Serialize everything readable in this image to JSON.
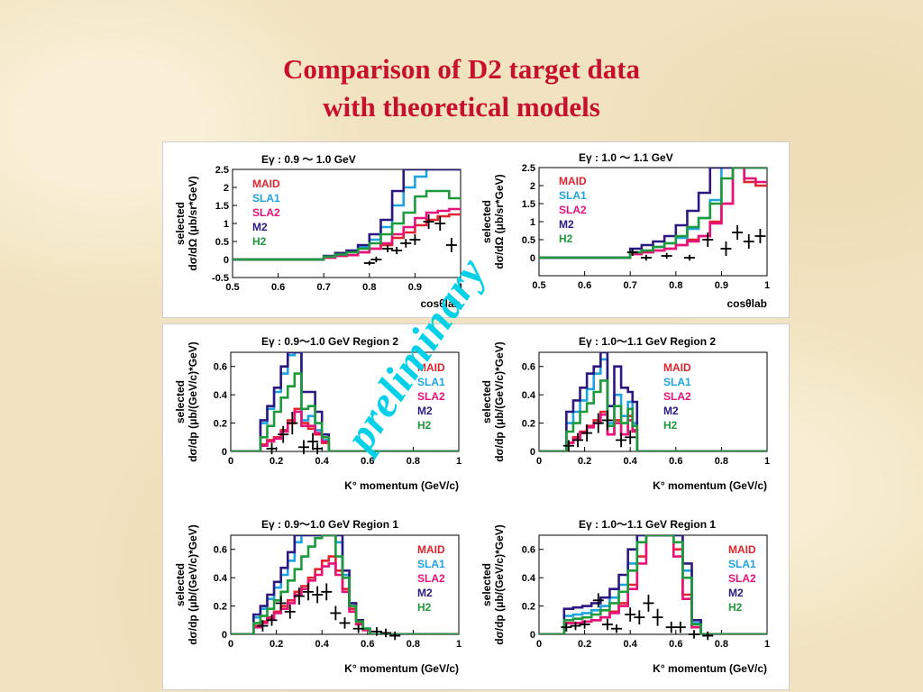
{
  "title_line1": "Comparison of  D2 target data",
  "title_line2": "with theoretical models",
  "watermark": "preliminary",
  "colors": {
    "MAID": "#e0252f",
    "SLA1": "#1ea3e0",
    "SLA2": "#e6127a",
    "M2": "#2c1880",
    "H2": "#1c9a3c",
    "data": "#000000"
  },
  "chart_data": [
    {
      "type": "line",
      "title": "Eγ : 0.9 ～ 1.0 GeV",
      "ylabel_line1": "selected",
      "ylabel_line2": "dσ/dΩ (μb/sr*GeV)",
      "xlabel": "cosθlab",
      "xlim": [
        0.5,
        1.0
      ],
      "ylim": [
        -0.5,
        2.5
      ],
      "xticks": [
        "0.5",
        "0.6",
        "0.7",
        "0.8",
        "0.9",
        "1"
      ],
      "yticks": [
        "-0.5",
        "0",
        "0.5",
        "1",
        "1.5",
        "2",
        "2.5"
      ],
      "legend": [
        "MAID",
        "SLA1",
        "SLA2",
        "M2",
        "H2"
      ],
      "edges": [
        0.5,
        0.7,
        0.725,
        0.75,
        0.775,
        0.8,
        0.825,
        0.85,
        0.875,
        0.9,
        0.925,
        0.95,
        0.975,
        1.0
      ],
      "series": [
        {
          "name": "MAID",
          "values": [
            0,
            0.05,
            0.1,
            0.12,
            0.2,
            0.3,
            0.4,
            0.6,
            0.75,
            0.95,
            1.1,
            1.2,
            1.25
          ]
        },
        {
          "name": "SLA1",
          "values": [
            0,
            0.08,
            0.15,
            0.22,
            0.35,
            0.55,
            0.9,
            1.5,
            2.0,
            2.3,
            2.5,
            2.5,
            2.5
          ]
        },
        {
          "name": "SLA2",
          "values": [
            0,
            0.05,
            0.1,
            0.12,
            0.2,
            0.3,
            0.45,
            0.7,
            0.9,
            1.15,
            1.3,
            1.35,
            1.4
          ]
        },
        {
          "name": "M2",
          "values": [
            0,
            0.1,
            0.18,
            0.25,
            0.4,
            0.7,
            1.1,
            1.9,
            2.5,
            2.5,
            2.5,
            2.5,
            2.5
          ]
        },
        {
          "name": "H2",
          "values": [
            0,
            0.08,
            0.14,
            0.2,
            0.3,
            0.45,
            0.7,
            1.0,
            1.3,
            1.75,
            1.9,
            1.9,
            1.7
          ]
        }
      ],
      "data_points": [
        [
          0.8,
          -0.1
        ],
        [
          0.815,
          0.0
        ],
        [
          0.84,
          0.3
        ],
        [
          0.86,
          0.25
        ],
        [
          0.88,
          0.45
        ],
        [
          0.9,
          0.55
        ],
        [
          0.93,
          1.05
        ],
        [
          0.955,
          1.0
        ],
        [
          0.98,
          0.4
        ]
      ],
      "data_err": [
        0.06,
        0.08,
        0.1,
        0.1,
        0.12,
        0.15,
        0.2,
        0.2,
        0.2
      ]
    },
    {
      "type": "line",
      "title": "Eγ : 1.0 ～ 1.1 GeV",
      "ylabel_line1": "selected",
      "ylabel_line2": "dσ/dΩ (μb/sr*GeV)",
      "xlabel": "cosθlab",
      "xlim": [
        0.5,
        1.0
      ],
      "ylim": [
        -0.5,
        2.5
      ],
      "xticks": [
        "0.5",
        "0.6",
        "0.7",
        "0.8",
        "0.9",
        "1"
      ],
      "yticks": [
        "0",
        "0.5",
        "1",
        "1.5",
        "2",
        "2.5"
      ],
      "legend": [
        "MAID",
        "SLA1",
        "SLA2",
        "M2",
        "H2"
      ],
      "edges": [
        0.5,
        0.7,
        0.725,
        0.75,
        0.775,
        0.8,
        0.825,
        0.85,
        0.875,
        0.9,
        0.925,
        0.95,
        0.975,
        1.0
      ],
      "series": [
        {
          "name": "MAID",
          "values": [
            0,
            0.1,
            0.15,
            0.2,
            0.25,
            0.35,
            0.5,
            0.6,
            1.0,
            1.5,
            2.5,
            2.1,
            2.0
          ]
        },
        {
          "name": "SLA1",
          "values": [
            0,
            0.15,
            0.2,
            0.3,
            0.4,
            0.55,
            0.8,
            1.1,
            1.6,
            2.5,
            2.5,
            2.5,
            2.5
          ]
        },
        {
          "name": "SLA2",
          "values": [
            0,
            0.1,
            0.15,
            0.2,
            0.25,
            0.35,
            0.45,
            0.6,
            0.95,
            1.5,
            2.5,
            2.2,
            2.1
          ]
        },
        {
          "name": "M2",
          "values": [
            0,
            0.25,
            0.35,
            0.45,
            0.6,
            0.9,
            1.3,
            1.8,
            2.5,
            2.5,
            2.5,
            2.5,
            2.5
          ]
        },
        {
          "name": "H2",
          "values": [
            0,
            0.15,
            0.2,
            0.3,
            0.4,
            0.6,
            0.85,
            1.1,
            1.5,
            2.2,
            2.5,
            2.5,
            2.5
          ]
        }
      ],
      "data_points": [
        [
          0.705,
          0.15
        ],
        [
          0.735,
          0.0
        ],
        [
          0.78,
          0.05
        ],
        [
          0.83,
          0.0
        ],
        [
          0.87,
          0.5
        ],
        [
          0.91,
          0.25
        ],
        [
          0.935,
          0.7
        ],
        [
          0.96,
          0.45
        ],
        [
          0.985,
          0.6
        ]
      ],
      "data_err": [
        0.1,
        0.08,
        0.08,
        0.08,
        0.2,
        0.2,
        0.2,
        0.2,
        0.2
      ]
    },
    {
      "type": "line",
      "title": "Eγ : 0.9～1.0 GeV   Region 2",
      "ylabel_line1": "selected",
      "ylabel_line2": "dσ/dp (μb/(GeV/c)*GeV)",
      "xlabel": "K° momentum (GeV/c)",
      "xlim": [
        0,
        1.0
      ],
      "ylim": [
        0,
        0.7
      ],
      "xticks": [
        "0",
        "0.2",
        "0.4",
        "0.6",
        "0.8",
        "1"
      ],
      "yticks": [
        "0",
        "0.2",
        "0.4",
        "0.6"
      ],
      "legend": [
        "MAID",
        "SLA1",
        "SLA2",
        "M2",
        "H2"
      ],
      "edges": [
        0,
        0.13,
        0.16,
        0.19,
        0.22,
        0.25,
        0.28,
        0.31,
        0.34,
        0.37,
        0.4,
        0.43,
        1.0
      ],
      "series": [
        {
          "name": "MAID",
          "values": [
            0,
            0.05,
            0.08,
            0.1,
            0.15,
            0.22,
            0.3,
            0.2,
            0.16,
            0.12,
            0.06,
            0,
            0
          ]
        },
        {
          "name": "SLA1",
          "values": [
            0,
            0.2,
            0.3,
            0.42,
            0.55,
            0.68,
            0.7,
            0.22,
            0.25,
            0.15,
            0.08,
            0,
            0
          ]
        },
        {
          "name": "SLA2",
          "values": [
            0,
            0.04,
            0.07,
            0.09,
            0.14,
            0.2,
            0.28,
            0.18,
            0.18,
            0.13,
            0.07,
            0,
            0
          ]
        },
        {
          "name": "M2",
          "values": [
            0,
            0.22,
            0.32,
            0.45,
            0.6,
            0.7,
            0.7,
            0.42,
            0.42,
            0.28,
            0.12,
            0,
            0
          ]
        },
        {
          "name": "H2",
          "values": [
            0,
            0.1,
            0.18,
            0.28,
            0.38,
            0.46,
            0.55,
            0.3,
            0.32,
            0.2,
            0.1,
            0,
            0
          ]
        }
      ],
      "data_points": [
        [
          0.18,
          0.02
        ],
        [
          0.23,
          0.12
        ],
        [
          0.27,
          0.2
        ],
        [
          0.32,
          0.03
        ],
        [
          0.36,
          0.07
        ],
        [
          0.38,
          0.02
        ]
      ],
      "data_err": [
        0.04,
        0.06,
        0.08,
        0.05,
        0.06,
        0.04
      ]
    },
    {
      "type": "line",
      "title": "Eγ : 1.0～1.1 GeV   Region 2",
      "ylabel_line1": "selected",
      "ylabel_line2": "dσ/dp (μb/(GeV/c)*GeV)",
      "xlabel": "K° momentum (GeV/c)",
      "xlim": [
        0,
        1.0
      ],
      "ylim": [
        0,
        0.7
      ],
      "xticks": [
        "0",
        "0.2",
        "0.4",
        "0.6",
        "0.8",
        "1"
      ],
      "yticks": [
        "0",
        "0.2",
        "0.4",
        "0.6"
      ],
      "legend": [
        "MAID",
        "SLA1",
        "SLA2",
        "M2",
        "H2"
      ],
      "edges": [
        0,
        0.12,
        0.15,
        0.18,
        0.21,
        0.24,
        0.27,
        0.3,
        0.33,
        0.36,
        0.39,
        0.41,
        0.43,
        1.0
      ],
      "series": [
        {
          "name": "MAID",
          "values": [
            0,
            0.06,
            0.1,
            0.14,
            0.18,
            0.22,
            0.28,
            0.12,
            0.22,
            0.12,
            0.25,
            0.15,
            0,
            0
          ]
        },
        {
          "name": "SLA1",
          "values": [
            0,
            0.2,
            0.28,
            0.36,
            0.44,
            0.55,
            0.65,
            0.2,
            0.4,
            0.25,
            0.35,
            0.2,
            0,
            0
          ]
        },
        {
          "name": "SLA2",
          "values": [
            0,
            0.06,
            0.09,
            0.13,
            0.17,
            0.2,
            0.26,
            0.12,
            0.2,
            0.12,
            0.22,
            0.14,
            0,
            0
          ]
        },
        {
          "name": "M2",
          "values": [
            0,
            0.28,
            0.36,
            0.45,
            0.55,
            0.6,
            0.7,
            0.32,
            0.6,
            0.45,
            0.42,
            0.35,
            0,
            0
          ]
        },
        {
          "name": "H2",
          "values": [
            0,
            0.14,
            0.2,
            0.28,
            0.34,
            0.42,
            0.5,
            0.18,
            0.32,
            0.2,
            0.3,
            0.18,
            0,
            0
          ]
        }
      ],
      "data_points": [
        [
          0.13,
          0.04
        ],
        [
          0.17,
          0.08
        ],
        [
          0.21,
          0.13
        ],
        [
          0.26,
          0.2
        ],
        [
          0.3,
          0.22
        ],
        [
          0.36,
          0.08
        ],
        [
          0.4,
          0.1
        ]
      ],
      "data_err": [
        0.04,
        0.05,
        0.06,
        0.07,
        0.07,
        0.05,
        0.05
      ]
    },
    {
      "type": "line",
      "title": "Eγ : 0.9～1.0 GeV   Region 1",
      "ylabel_line1": "selected",
      "ylabel_line2": "dσ/dp (μb/(GeV/c)*GeV)",
      "xlabel": "K° momentum (GeV/c)",
      "xlim": [
        0,
        1.0
      ],
      "ylim": [
        0,
        0.7
      ],
      "xticks": [
        "0",
        "0.2",
        "0.4",
        "0.6",
        "0.8",
        "1"
      ],
      "yticks": [
        "0",
        "0.2",
        "0.4",
        "0.6"
      ],
      "legend": [
        "MAID",
        "SLA1",
        "SLA2",
        "M2",
        "H2"
      ],
      "edges": [
        0,
        0.1,
        0.13,
        0.16,
        0.19,
        0.22,
        0.25,
        0.28,
        0.31,
        0.34,
        0.37,
        0.4,
        0.43,
        0.46,
        0.49,
        0.52,
        0.55,
        0.58,
        0.61,
        1.0
      ],
      "series": [
        {
          "name": "MAID",
          "values": [
            0,
            0.06,
            0.09,
            0.12,
            0.16,
            0.2,
            0.24,
            0.3,
            0.34,
            0.4,
            0.46,
            0.52,
            0.55,
            0.45,
            0.32,
            0.18,
            0.08,
            0.03,
            0,
            0
          ]
        },
        {
          "name": "SLA1",
          "values": [
            0,
            0.12,
            0.18,
            0.25,
            0.33,
            0.42,
            0.52,
            0.65,
            0.7,
            0.7,
            0.7,
            0.7,
            0.7,
            0.65,
            0.42,
            0.2,
            0.1,
            0.04,
            0,
            0
          ]
        },
        {
          "name": "SLA2",
          "values": [
            0,
            0.05,
            0.08,
            0.11,
            0.15,
            0.18,
            0.22,
            0.28,
            0.32,
            0.38,
            0.42,
            0.48,
            0.5,
            0.42,
            0.3,
            0.16,
            0.07,
            0.03,
            0,
            0
          ]
        },
        {
          "name": "M2",
          "values": [
            0,
            0.14,
            0.2,
            0.28,
            0.37,
            0.47,
            0.58,
            0.7,
            0.7,
            0.7,
            0.7,
            0.7,
            0.7,
            0.7,
            0.45,
            0.22,
            0.1,
            0.04,
            0,
            0
          ]
        },
        {
          "name": "H2",
          "values": [
            0,
            0.08,
            0.13,
            0.18,
            0.24,
            0.3,
            0.38,
            0.46,
            0.55,
            0.62,
            0.68,
            0.7,
            0.7,
            0.55,
            0.4,
            0.2,
            0.09,
            0.04,
            0,
            0
          ]
        }
      ],
      "data_points": [
        [
          0.14,
          0.06
        ],
        [
          0.18,
          0.1
        ],
        [
          0.22,
          0.22
        ],
        [
          0.26,
          0.16
        ],
        [
          0.3,
          0.27
        ],
        [
          0.34,
          0.3
        ],
        [
          0.38,
          0.28
        ],
        [
          0.42,
          0.3
        ],
        [
          0.46,
          0.15
        ],
        [
          0.5,
          0.08
        ],
        [
          0.56,
          0.04
        ],
        [
          0.64,
          0.02
        ],
        [
          0.68,
          0.01
        ],
        [
          0.72,
          -0.01
        ]
      ],
      "data_err": [
        0.04,
        0.04,
        0.05,
        0.05,
        0.06,
        0.06,
        0.06,
        0.06,
        0.05,
        0.04,
        0.03,
        0.03,
        0.03,
        0.03
      ]
    },
    {
      "type": "line",
      "title": "Eγ : 1.0～1.1 GeV   Region 1",
      "ylabel_line1": "selected",
      "ylabel_line2": "dσ/dp (μb/(GeV/c)*GeV)",
      "xlabel": "K° momentum (GeV/c)",
      "xlim": [
        0,
        1.0
      ],
      "ylim": [
        0,
        0.7
      ],
      "xticks": [
        "0",
        "0.2",
        "0.4",
        "0.6",
        "0.8",
        "1"
      ],
      "yticks": [
        "0",
        "0.2",
        "0.4",
        "0.6"
      ],
      "legend": [
        "MAID",
        "SLA1",
        "SLA2",
        "M2",
        "H2"
      ],
      "edges": [
        0,
        0.11,
        0.15,
        0.19,
        0.23,
        0.27,
        0.31,
        0.35,
        0.39,
        0.43,
        0.47,
        0.51,
        0.55,
        0.59,
        0.63,
        0.67,
        0.71,
        1.0
      ],
      "series": [
        {
          "name": "MAID",
          "values": [
            0,
            0.08,
            0.08,
            0.09,
            0.1,
            0.12,
            0.16,
            0.22,
            0.35,
            0.55,
            0.7,
            0.7,
            0.7,
            0.6,
            0.28,
            0.05,
            0,
            0
          ]
        },
        {
          "name": "SLA1",
          "values": [
            0,
            0.13,
            0.14,
            0.15,
            0.17,
            0.2,
            0.26,
            0.35,
            0.5,
            0.7,
            0.7,
            0.7,
            0.7,
            0.7,
            0.45,
            0.08,
            0,
            0
          ]
        },
        {
          "name": "SLA2",
          "values": [
            0,
            0.08,
            0.08,
            0.09,
            0.1,
            0.12,
            0.15,
            0.2,
            0.32,
            0.5,
            0.7,
            0.7,
            0.7,
            0.55,
            0.25,
            0.05,
            0,
            0
          ]
        },
        {
          "name": "M2",
          "values": [
            0,
            0.18,
            0.19,
            0.2,
            0.22,
            0.26,
            0.32,
            0.42,
            0.6,
            0.7,
            0.7,
            0.7,
            0.7,
            0.7,
            0.5,
            0.1,
            0,
            0
          ]
        },
        {
          "name": "H2",
          "values": [
            0,
            0.1,
            0.11,
            0.12,
            0.14,
            0.17,
            0.22,
            0.3,
            0.45,
            0.65,
            0.7,
            0.7,
            0.7,
            0.65,
            0.4,
            0.07,
            0,
            0
          ]
        }
      ],
      "data_points": [
        [
          0.12,
          0.05
        ],
        [
          0.16,
          0.06
        ],
        [
          0.2,
          0.07
        ],
        [
          0.26,
          0.24
        ],
        [
          0.3,
          0.07
        ],
        [
          0.34,
          0.04
        ],
        [
          0.4,
          0.14
        ],
        [
          0.44,
          0.12
        ],
        [
          0.48,
          0.22
        ],
        [
          0.52,
          0.12
        ],
        [
          0.58,
          0.05
        ],
        [
          0.62,
          0.05
        ],
        [
          0.68,
          0.0
        ],
        [
          0.74,
          -0.01
        ]
      ],
      "data_err": [
        0.03,
        0.03,
        0.03,
        0.05,
        0.04,
        0.03,
        0.05,
        0.05,
        0.06,
        0.06,
        0.04,
        0.04,
        0.03,
        0.03
      ]
    }
  ]
}
